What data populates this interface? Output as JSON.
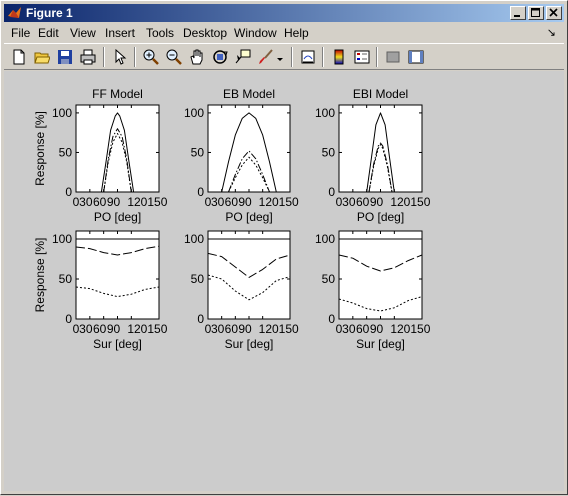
{
  "window": {
    "title": "Figure 1",
    "controls": [
      "minimize",
      "maximize",
      "close"
    ]
  },
  "menu": {
    "items": [
      {
        "label": "File",
        "mnemonic": "F"
      },
      {
        "label": "Edit",
        "mnemonic": "E"
      },
      {
        "label": "View",
        "mnemonic": "V"
      },
      {
        "label": "Insert",
        "mnemonic": "I"
      },
      {
        "label": "Tools",
        "mnemonic": "T"
      },
      {
        "label": "Desktop",
        "mnemonic": "D"
      },
      {
        "label": "Window",
        "mnemonic": "W"
      },
      {
        "label": "Help",
        "mnemonic": "H"
      }
    ],
    "dock_arrow": "↘"
  },
  "toolbar": {
    "icons": [
      "new-file-icon",
      "open-folder-icon",
      "save-icon",
      "print-icon",
      "pointer-icon",
      "zoom-in-icon",
      "zoom-out-icon",
      "pan-hand-icon",
      "rotate-3d-icon",
      "data-cursor-icon",
      "brush-icon",
      "brush-dropdown-icon",
      "link-plot-icon",
      "colorbar-icon",
      "legend-icon",
      "hide-plot-tools-icon",
      "show-plot-tools-icon"
    ]
  },
  "chart_data": [
    {
      "type": "line",
      "title": "FF Model",
      "xlabel": "PO [deg]",
      "ylabel": "Response [%]",
      "xlim": [
        0,
        180
      ],
      "ylim": [
        0,
        110
      ],
      "xticks": [
        "0",
        "30",
        "60",
        "90",
        "120150"
      ],
      "xtick_values": [
        0,
        30,
        60,
        90,
        120
      ],
      "yticks": [
        "0",
        "50",
        "100"
      ],
      "ytick_values": [
        0,
        50,
        100
      ],
      "series": [
        {
          "style": "solid",
          "x": [
            55,
            65,
            75,
            85,
            90,
            95,
            105,
            115,
            125
          ],
          "y": [
            0,
            38,
            78,
            96,
            100,
            96,
            78,
            38,
            0
          ]
        },
        {
          "style": "dashdot",
          "x": [
            60,
            70,
            80,
            90,
            100,
            110,
            120
          ],
          "y": [
            0,
            42,
            70,
            80,
            70,
            42,
            0
          ]
        },
        {
          "style": "dotted",
          "x": [
            60,
            70,
            80,
            90,
            100,
            110,
            120
          ],
          "y": [
            0,
            38,
            63,
            74,
            63,
            38,
            0
          ]
        }
      ]
    },
    {
      "type": "line",
      "title": "EB Model",
      "xlabel": "PO [deg]",
      "ylabel": "",
      "xlim": [
        0,
        180
      ],
      "ylim": [
        0,
        110
      ],
      "xticks": [
        "0",
        "30",
        "60",
        "90",
        "120150"
      ],
      "xtick_values": [
        0,
        30,
        60,
        90,
        120
      ],
      "yticks": [
        "0",
        "50",
        "100"
      ],
      "ytick_values": [
        0,
        50,
        100
      ],
      "series": [
        {
          "style": "solid",
          "x": [
            30,
            45,
            60,
            75,
            90,
            105,
            120,
            135,
            150
          ],
          "y": [
            0,
            38,
            72,
            93,
            100,
            93,
            72,
            38,
            0
          ]
        },
        {
          "style": "dashdot",
          "x": [
            45,
            60,
            75,
            90,
            105,
            120,
            135
          ],
          "y": [
            0,
            22,
            42,
            52,
            42,
            22,
            0
          ]
        },
        {
          "style": "dotted",
          "x": [
            45,
            60,
            75,
            90,
            105,
            120,
            135
          ],
          "y": [
            0,
            18,
            34,
            44,
            34,
            18,
            0
          ]
        }
      ]
    },
    {
      "type": "line",
      "title": "EBI Model",
      "xlabel": "PO [deg]",
      "ylabel": "",
      "xlim": [
        0,
        180
      ],
      "ylim": [
        0,
        110
      ],
      "xticks": [
        "0",
        "30",
        "60",
        "90",
        "120150"
      ],
      "xtick_values": [
        0,
        30,
        60,
        90,
        120
      ],
      "yticks": [
        "0",
        "50",
        "100"
      ],
      "ytick_values": [
        0,
        50,
        100
      ],
      "series": [
        {
          "style": "solid",
          "x": [
            60,
            70,
            80,
            90,
            100,
            110,
            120
          ],
          "y": [
            0,
            42,
            85,
            100,
            85,
            42,
            0
          ]
        },
        {
          "style": "dashdot",
          "x": [
            65,
            75,
            85,
            90,
            95,
            105,
            115
          ],
          "y": [
            0,
            35,
            58,
            62,
            58,
            35,
            0
          ]
        },
        {
          "style": "dotted",
          "x": [
            65,
            75,
            85,
            90,
            95,
            105,
            115
          ],
          "y": [
            0,
            32,
            55,
            60,
            55,
            32,
            0
          ]
        }
      ]
    },
    {
      "type": "line",
      "title": "",
      "xlabel": "Sur [deg]",
      "ylabel": "Response [%]",
      "xlim": [
        0,
        180
      ],
      "ylim": [
        0,
        110
      ],
      "xticks": [
        "0",
        "30",
        "60",
        "90",
        "120150"
      ],
      "xtick_values": [
        0,
        30,
        60,
        90,
        120
      ],
      "yticks": [
        "0",
        "50",
        "100"
      ],
      "ytick_values": [
        0,
        50,
        100
      ],
      "series": [
        {
          "style": "solid",
          "x": [
            0,
            180
          ],
          "y": [
            100,
            100
          ]
        },
        {
          "style": "dashed",
          "x": [
            0,
            30,
            60,
            90,
            120,
            150,
            180
          ],
          "y": [
            90,
            88,
            83,
            80,
            83,
            88,
            91
          ]
        },
        {
          "style": "dotted",
          "x": [
            0,
            30,
            60,
            90,
            120,
            150,
            180
          ],
          "y": [
            40,
            38,
            32,
            28,
            31,
            37,
            40
          ]
        }
      ]
    },
    {
      "type": "line",
      "title": "",
      "xlabel": "Sur [deg]",
      "ylabel": "",
      "xlim": [
        0,
        180
      ],
      "ylim": [
        0,
        110
      ],
      "xticks": [
        "0",
        "30",
        "60",
        "90",
        "120150"
      ],
      "xtick_values": [
        0,
        30,
        60,
        90,
        120
      ],
      "yticks": [
        "0",
        "50",
        "100"
      ],
      "ytick_values": [
        0,
        50,
        100
      ],
      "series": [
        {
          "style": "solid",
          "x": [
            0,
            180
          ],
          "y": [
            100,
            100
          ]
        },
        {
          "style": "dashed",
          "x": [
            0,
            30,
            60,
            90,
            120,
            150,
            180
          ],
          "y": [
            82,
            78,
            65,
            52,
            62,
            75,
            80
          ]
        },
        {
          "style": "dotted",
          "x": [
            0,
            30,
            60,
            90,
            120,
            150,
            180
          ],
          "y": [
            55,
            50,
            35,
            24,
            33,
            48,
            53
          ]
        }
      ]
    },
    {
      "type": "line",
      "title": "",
      "xlabel": "Sur [deg]",
      "ylabel": "",
      "xlim": [
        0,
        180
      ],
      "ylim": [
        0,
        110
      ],
      "xticks": [
        "0",
        "30",
        "60",
        "90",
        "120150"
      ],
      "xtick_values": [
        0,
        30,
        60,
        90,
        120
      ],
      "yticks": [
        "0",
        "50",
        "100"
      ],
      "ytick_values": [
        0,
        50,
        100
      ],
      "series": [
        {
          "style": "solid",
          "x": [
            0,
            180
          ],
          "y": [
            100,
            100
          ]
        },
        {
          "style": "dashed",
          "x": [
            0,
            30,
            60,
            90,
            120,
            150,
            180
          ],
          "y": [
            80,
            76,
            66,
            60,
            64,
            73,
            80
          ]
        },
        {
          "style": "dotted",
          "x": [
            0,
            30,
            60,
            90,
            120,
            150,
            180
          ],
          "y": [
            25,
            20,
            13,
            10,
            14,
            23,
            28
          ]
        }
      ]
    }
  ]
}
